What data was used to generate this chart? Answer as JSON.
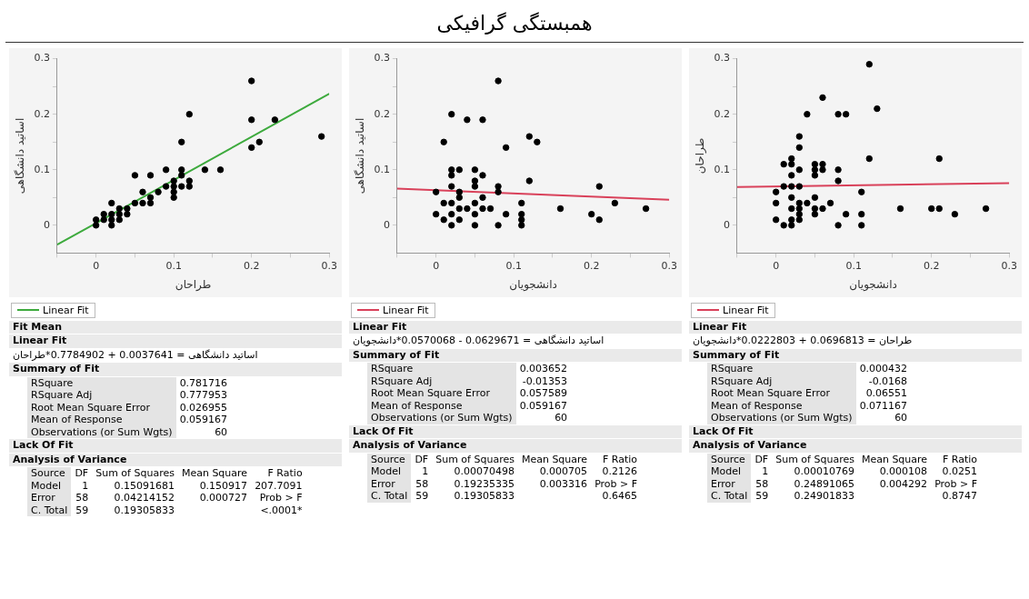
{
  "chart_data": [
    {
      "type": "other",
      "title": "همبستگی گرافیکی"
    },
    {
      "type": "scatter",
      "xlabel": "طراحان",
      "ylabel": "اساتید دانشگاهی",
      "legend": "bottom left",
      "grid": false,
      "xlim": [
        -0.05,
        0.3
      ],
      "xticks": [
        {
          "value": -0.05,
          "label": null
        },
        0,
        {
          "value": 0.05,
          "label": null
        },
        0.1,
        {
          "value": 0.15,
          "label": null
        },
        0.2,
        {
          "value": 0.25,
          "label": null
        },
        0.3
      ],
      "ylim": [
        -0.05,
        0.3
      ],
      "yticks": [
        0,
        {
          "value": 0.05,
          "label": null
        },
        0.1,
        {
          "value": 0.15,
          "label": null
        },
        0.2,
        {
          "value": 0.25,
          "label": null
        },
        0.3
      ],
      "series": [
        {
          "type": "scatter",
          "marker": "circle",
          "color": "#000000",
          "x": [
            0,
            0,
            0.01,
            0.01,
            0.02,
            0.02,
            0.02,
            0.02,
            0.03,
            0.03,
            0.03,
            0.04,
            0.04,
            0.05,
            0.05,
            0.06,
            0.06,
            0.07,
            0.07,
            0.07,
            0.08,
            0.09,
            0.09,
            0.1,
            0.1,
            0.1,
            0.1,
            0.11,
            0.11,
            0.11,
            0.11,
            0.12,
            0.12,
            0.12,
            0.14,
            0.16,
            0.2,
            0.2,
            0.2,
            0.21,
            0.23,
            0.29
          ],
          "values": [
            0.01,
            0,
            0.02,
            0.01,
            0.04,
            0.02,
            0.01,
            0,
            0.03,
            0.02,
            0.01,
            0.03,
            0.02,
            0.09,
            0.04,
            0.06,
            0.04,
            0.09,
            0.05,
            0.04,
            0.06,
            0.1,
            0.07,
            0.08,
            0.07,
            0.06,
            0.05,
            0.15,
            0.1,
            0.09,
            0.07,
            0.2,
            0.08,
            0.07,
            0.1,
            0.1,
            0.26,
            0.19,
            0.14,
            0.15,
            0.19,
            0.16
          ]
        },
        {
          "type": "line",
          "marker": "none",
          "name": "Linear Fit",
          "color": "#3daa3d",
          "x": [
            -0.05,
            0.3
          ],
          "values": [
            -0.035,
            0.237
          ]
        }
      ],
      "annotations": [
        "Fit Mean",
        "Linear Fit",
        "اساتید دانشگاهی = 0.0037641 + 0.7784902*طراحان",
        "Summary of Fit",
        "RSquare\t0.781716",
        "RSquare Adj\t0.777953",
        "Root Mean Square Error\t0.026955",
        "Mean of Response\t0.059167",
        "Observations (or Sum Wgts)\t60",
        "Lack Of Fit",
        "Analysis of Variance",
        "Source\tDF\tSum of Squares\tMean Square\tF Ratio",
        "Model\t1\t0.15091681\t0.150917\t207.7091",
        "Error\t58\t0.04214152\t0.000727\tProb > F",
        "C. Total\t59\t0.19305833\t\t<.0001*"
      ]
    },
    {
      "type": "scatter",
      "xlabel": "دانشجویان",
      "ylabel": "اساتید دانشگاهی",
      "legend": "bottom left",
      "grid": false,
      "xlim": [
        -0.05,
        0.3
      ],
      "xticks": [
        {
          "value": -0.05,
          "label": null
        },
        0,
        {
          "value": 0.05,
          "label": null
        },
        0.1,
        {
          "value": 0.15,
          "label": null
        },
        0.2,
        {
          "value": 0.25,
          "label": null
        },
        0.3
      ],
      "ylim": [
        -0.05,
        0.3
      ],
      "yticks": [
        0,
        {
          "value": 0.05,
          "label": null
        },
        0.1,
        {
          "value": 0.15,
          "label": null
        },
        0.2,
        {
          "value": 0.25,
          "label": null
        },
        0.3
      ],
      "series": [
        {
          "type": "scatter",
          "marker": "circle",
          "color": "#000000",
          "x": [
            0,
            0,
            0.01,
            0.01,
            0.01,
            0.02,
            0.02,
            0.02,
            0.02,
            0.02,
            0.02,
            0.02,
            0.03,
            0.03,
            0.03,
            0.03,
            0.03,
            0.04,
            0.04,
            0.05,
            0.05,
            0.05,
            0.05,
            0.05,
            0.05,
            0.06,
            0.06,
            0.06,
            0.06,
            0.07,
            0.08,
            0.08,
            0.08,
            0.08,
            0.09,
            0.09,
            0.11,
            0.11,
            0.11,
            0.11,
            0.12,
            0.12,
            0.13,
            0.16,
            0.2,
            0.21,
            0.21,
            0.23,
            0.27
          ],
          "values": [
            0.06,
            0.02,
            0.15,
            0.04,
            0.01,
            0.2,
            0.1,
            0.09,
            0.07,
            0.04,
            0.02,
            0,
            0.1,
            0.06,
            0.05,
            0.03,
            0.01,
            0.19,
            0.03,
            0.1,
            0.08,
            0.07,
            0.04,
            0.02,
            0,
            0.19,
            0.09,
            0.05,
            0.03,
            0.03,
            0.26,
            0.07,
            0.06,
            0,
            0.14,
            0.02,
            0.04,
            0.02,
            0.01,
            0,
            0.16,
            0.08,
            0.15,
            0.03,
            0.02,
            0.07,
            0.01,
            0.04,
            0.03
          ]
        },
        {
          "type": "line",
          "marker": "none",
          "name": "Linear Fit",
          "color": "#d9415a",
          "x": [
            -0.05,
            0.3
          ],
          "values": [
            0.066,
            0.046
          ]
        }
      ],
      "annotations": [
        "Linear Fit",
        "اساتید دانشگاهی = 0.0629671 - 0.0570068*دانشجویان",
        "Summary of Fit",
        "RSquare\t0.003652",
        "RSquare Adj\t-0.01353",
        "Root Mean Square Error\t0.057589",
        "Mean of Response\t0.059167",
        "Observations (or Sum Wgts)\t60",
        "Lack Of Fit",
        "Analysis of Variance",
        "Source\tDF\tSum of Squares\tMean Square\tF Ratio",
        "Model\t1\t0.00070498\t0.000705\t0.2126",
        "Error\t58\t0.19235335\t0.003316\tProb > F",
        "C. Total\t59\t0.19305833\t\t0.6465"
      ]
    },
    {
      "type": "scatter",
      "xlabel": "دانشجویان",
      "ylabel": "طراحان",
      "legend": "bottom left",
      "grid": false,
      "xlim": [
        -0.05,
        0.3
      ],
      "xticks": [
        {
          "value": -0.05,
          "label": null
        },
        0,
        {
          "value": 0.05,
          "label": null
        },
        0.1,
        {
          "value": 0.15,
          "label": null
        },
        0.2,
        {
          "value": 0.25,
          "label": null
        },
        0.3
      ],
      "ylim": [
        -0.05,
        0.3
      ],
      "yticks": [
        0,
        {
          "value": 0.05,
          "label": null
        },
        0.1,
        {
          "value": 0.15,
          "label": null
        },
        0.2,
        {
          "value": 0.25,
          "label": null
        },
        0.3
      ],
      "series": [
        {
          "type": "scatter",
          "marker": "circle",
          "color": "#000000",
          "x": [
            0,
            0,
            0,
            0.01,
            0.01,
            0.01,
            0.02,
            0.02,
            0.02,
            0.02,
            0.02,
            0.02,
            0.02,
            0.02,
            0.03,
            0.03,
            0.03,
            0.03,
            0.03,
            0.03,
            0.03,
            0.03,
            0.04,
            0.04,
            0.05,
            0.05,
            0.05,
            0.05,
            0.05,
            0.05,
            0.06,
            0.06,
            0.06,
            0.06,
            0.07,
            0.08,
            0.08,
            0.08,
            0.08,
            0.09,
            0.09,
            0.11,
            0.11,
            0.11,
            0.12,
            0.12,
            0.13,
            0.16,
            0.2,
            0.21,
            0.21,
            0.23,
            0.27
          ],
          "values": [
            0.06,
            0.04,
            0.01,
            0.11,
            0.07,
            0,
            0.12,
            0.11,
            0.09,
            0.07,
            0.05,
            0.03,
            0.01,
            0,
            0.16,
            0.14,
            0.1,
            0.07,
            0.04,
            0.03,
            0.02,
            0.01,
            0.2,
            0.04,
            0.11,
            0.1,
            0.09,
            0.05,
            0.03,
            0.02,
            0.23,
            0.11,
            0.1,
            0.03,
            0.04,
            0.2,
            0.1,
            0.08,
            0,
            0.2,
            0.02,
            0.06,
            0.02,
            0,
            0.29,
            0.12,
            0.21,
            0.03,
            0.03,
            0.12,
            0.03,
            0.02,
            0.03
          ]
        },
        {
          "type": "line",
          "marker": "none",
          "name": "Linear Fit",
          "color": "#d9415a",
          "x": [
            -0.05,
            0.3
          ],
          "values": [
            0.069,
            0.076
          ]
        }
      ],
      "annotations": [
        "Linear Fit",
        "طراحان = 0.0696813 + 0.0222803*دانشجویان",
        "Summary of Fit",
        "RSquare\t0.000432",
        "RSquare Adj\t-0.0168",
        "Root Mean Square Error\t0.06551",
        "Mean of Response\t0.071167",
        "Observations (or Sum Wgts)\t60",
        "Lack Of Fit",
        "Analysis of Variance",
        "Source\tDF\tSum of Squares\tMean Square\tF Ratio",
        "Model\t1\t0.00010769\t0.000108\t0.0251",
        "Error\t58\t0.24891065\t0.004292\tProb > F",
        "C. Total\t59\t0.24901833\t\t0.8747"
      ]
    }
  ]
}
